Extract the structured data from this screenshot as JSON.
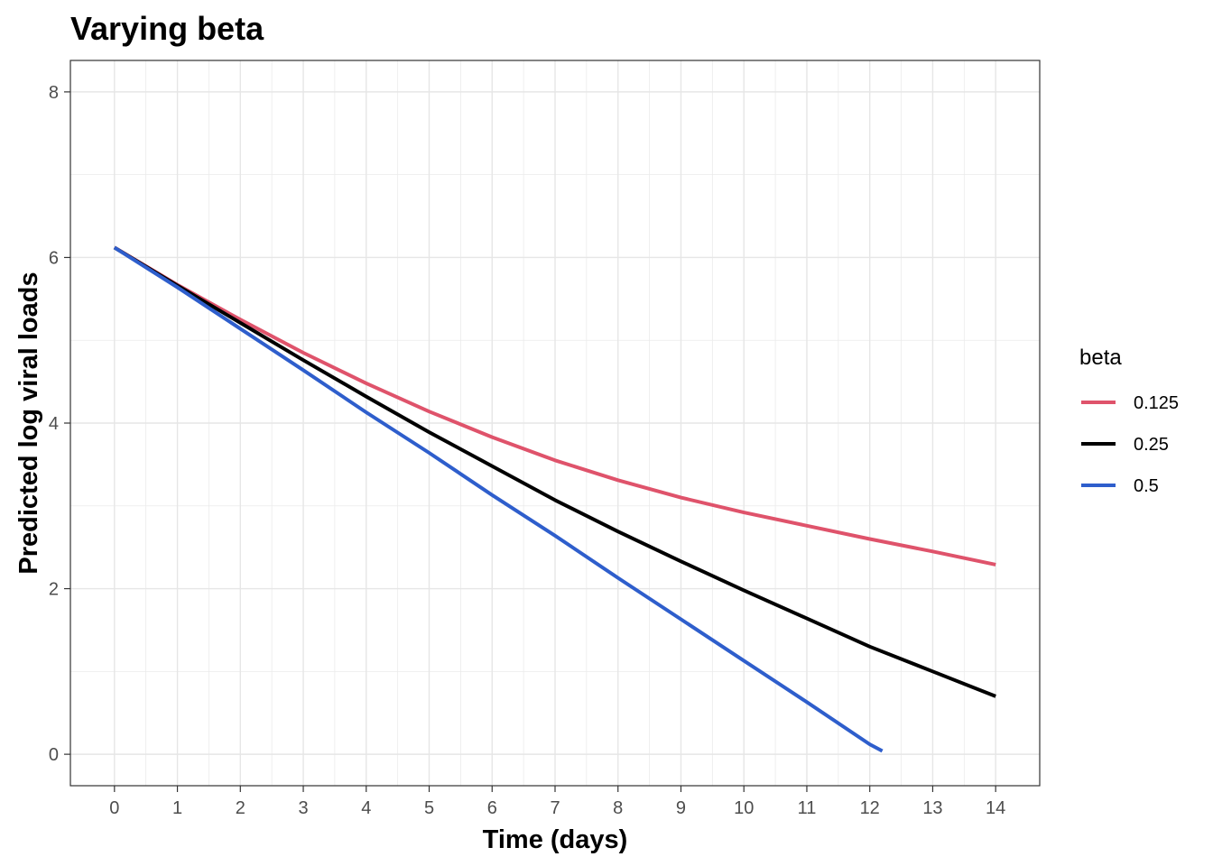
{
  "chart_data": {
    "type": "line",
    "title": "Varying beta",
    "xlabel": "Time (days)",
    "ylabel": "Predicted log viral loads",
    "xlim": [
      -0.7,
      14.7
    ],
    "ylim": [
      -0.38,
      8.38
    ],
    "x_ticks": [
      0,
      1,
      2,
      3,
      4,
      5,
      6,
      7,
      8,
      9,
      10,
      11,
      12,
      13,
      14
    ],
    "y_ticks": [
      0,
      2,
      4,
      6,
      8
    ],
    "grid": true,
    "legend": {
      "title": "beta",
      "position": "right"
    },
    "series": [
      {
        "name": "0.125",
        "color": "#df536b",
        "x": [
          0,
          1,
          2,
          3,
          4,
          5,
          6,
          7,
          8,
          9,
          10,
          11,
          12,
          13,
          14
        ],
        "y": [
          6.12,
          5.67,
          5.25,
          4.85,
          4.48,
          4.14,
          3.83,
          3.55,
          3.31,
          3.1,
          2.92,
          2.76,
          2.6,
          2.45,
          2.29
        ]
      },
      {
        "name": "0.25",
        "color": "#000000",
        "x": [
          0,
          1,
          2,
          3,
          4,
          5,
          6,
          7,
          8,
          9,
          10,
          11,
          12,
          13,
          14
        ],
        "y": [
          6.12,
          5.66,
          5.21,
          4.76,
          4.32,
          3.89,
          3.48,
          3.07,
          2.69,
          2.33,
          1.98,
          1.64,
          1.3,
          1.0,
          0.7
        ]
      },
      {
        "name": "0.5",
        "color": "#2e5ecc",
        "x": [
          0,
          1,
          2,
          3,
          4,
          5,
          6,
          7,
          8,
          9,
          10,
          11,
          12,
          12.2
        ],
        "y": [
          6.12,
          5.64,
          5.14,
          4.64,
          4.13,
          3.64,
          3.13,
          2.64,
          2.13,
          1.63,
          1.13,
          0.63,
          0.12,
          0.04
        ]
      }
    ]
  }
}
